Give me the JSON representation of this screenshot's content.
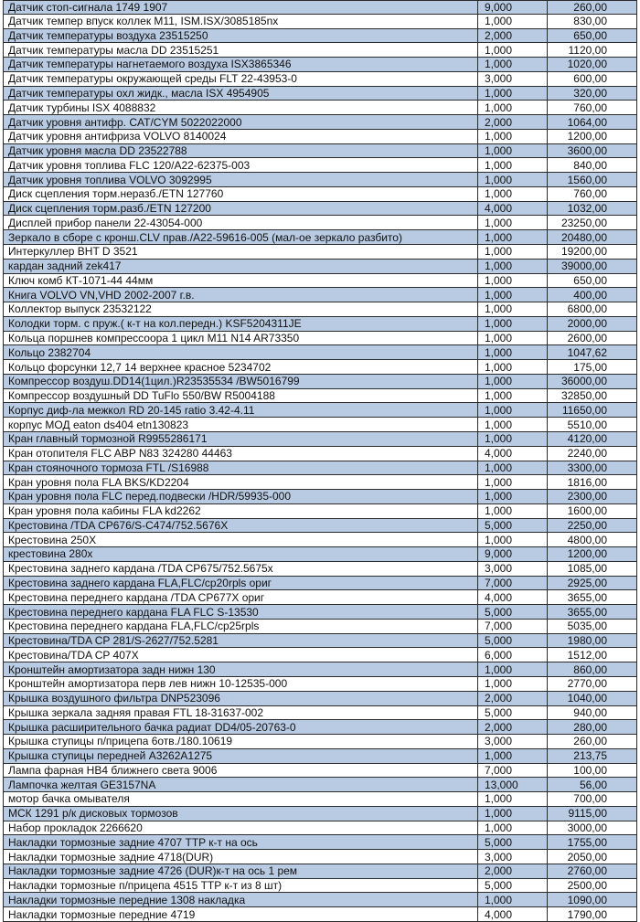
{
  "table": {
    "rows": [
      [
        "Датчик стоп-сигнала  1749  1907",
        "9,000",
        "260,00"
      ],
      [
        "Датчик темпер впуск коллек M11, ISM.ISX/3085185nx",
        "1,000",
        "830,00"
      ],
      [
        "Датчик температуры воздуха 23515250",
        "2,000",
        "650,00"
      ],
      [
        "Датчик температуры масла DD 23515251",
        "1,000",
        "1120,00"
      ],
      [
        "Датчик температуры нагнетаемого воздуха ISX3865346",
        "1,000",
        "1020,00"
      ],
      [
        "Датчик температуры окружающей среды FLT 22-43953-0",
        "3,000",
        "600,00"
      ],
      [
        "Датчик температуры охл жидк., масла ISX 4954905",
        "1,000",
        "320,00"
      ],
      [
        "Датчик турбины ISX 4088832",
        "1,000",
        "760,00"
      ],
      [
        "Датчик уровня антифр. CAT/CYM 5022022000",
        "2,000",
        "1064,00"
      ],
      [
        "Датчик уровня антифриза VOLVO 8140024",
        "1,000",
        "1200,00"
      ],
      [
        "Датчик уровня масла  DD 23522788",
        "1,000",
        "3600,00"
      ],
      [
        "Датчик уровня топлива FLC 120/A22-62375-003",
        "1,000",
        "840,00"
      ],
      [
        "Датчик уровня топлива VOLVO 3092995",
        "1,000",
        "1560,00"
      ],
      [
        "Диск сцепления торм.неразб./ETN 127760",
        "1,000",
        "760,00"
      ],
      [
        "Диск сцепления торм.разб./ETN 127200",
        "4,000",
        "1032,00"
      ],
      [
        "Дисплей прибор панели 22-43054-000",
        "1,000",
        "23250,00"
      ],
      [
        "Зеркало в сборе с кронш.CLV прав./A22-59616-005 (мал-ое зеркало разбито)",
        "1,000",
        "20480,00"
      ],
      [
        "Интеркуллер BHT D 3521",
        "1,000",
        "19200,00"
      ],
      [
        "кардан задний zek417",
        "1,000",
        "39000,00"
      ],
      [
        "Ключ комб КТ-1071-44 44мм",
        "1,000",
        "650,00"
      ],
      [
        "Книга VOLVO VN,VHD 2002-2007 г.в.",
        "1,000",
        "400,00"
      ],
      [
        "Коллектор выпуск 23532122",
        "1,000",
        "6800,00"
      ],
      [
        "Колодки торм. с пруж.( к-т на кол.передн.) KSF5204311JE",
        "1,000",
        "2000,00"
      ],
      [
        "Кольца поршнев компрессоора 1 цикл M11 N14 AR73350",
        "1,000",
        "2600,00"
      ],
      [
        "Кольцо 2382704",
        "1,000",
        "1047,62"
      ],
      [
        "Кольцо форсунки 12,7 14 верхнее красное 5234702",
        "1,000",
        "175,00"
      ],
      [
        "Компрессор воздуш.DD14(1цил.)R23535534 /BW5016799",
        "1,000",
        "36000,00"
      ],
      [
        "Компрессор воздушный DD TuFlo 550/BW R5004188",
        "1,000",
        "32850,00"
      ],
      [
        "Корпус диф-ла межкол RD 20-145 ratio 3.42-4.11",
        "1,000",
        "11650,00"
      ],
      [
        "корпус МОД eaton ds404 etn130823",
        "1,000",
        "5510,00"
      ],
      [
        "Кран главный тормозной R9955286171",
        "1,000",
        "4120,00"
      ],
      [
        "Кран отопителя FLC ABP N83 324280 44463",
        "4,000",
        "2240,00"
      ],
      [
        "Кран стояночного тормоза FTL /S16988",
        "1,000",
        "3300,00"
      ],
      [
        "Кран уровня пола FLA BKS/KD2204",
        "1,000",
        "1816,00"
      ],
      [
        "Кран уровня пола FLC перед.подвески /HDR/59935-000",
        "1,000",
        "2300,00"
      ],
      [
        "Кран уровня пола кабины FLA kd2262",
        "1,000",
        "1600,00"
      ],
      [
        "Крестовина /TDA CP676/S-C474/752.5676X",
        "5,000",
        "2250,00"
      ],
      [
        "Крестовина 250X",
        "1,000",
        "4800,00"
      ],
      [
        "крестовина 280x",
        "9,000",
        "1200,00"
      ],
      [
        "Крестовина заднего кардана /TDA CP675/752.5675x",
        "3,000",
        "1085,00"
      ],
      [
        "Крестовина заднего кардана FLA,FLC/cp20rpls ориг",
        "7,000",
        "2925,00"
      ],
      [
        "Крестовина переднего кардана /TDA CP677X ориг",
        "4,000",
        "3655,00"
      ],
      [
        "Крестовина переднего кардана FLA FLC S-13530",
        "5,000",
        "3655,00"
      ],
      [
        "Крестовина переднего кардана FLA,FLC/cp25rpls",
        "7,000",
        "5035,00"
      ],
      [
        "Крестовина/TDA CP 281/S-2627/752.5281",
        "5,000",
        "1980,00"
      ],
      [
        "Крестовина/TDA CP 407X",
        "6,000",
        "1512,00"
      ],
      [
        "Кронштейн амортизатора задн нижн 130",
        "1,000",
        "860,00"
      ],
      [
        "Кронштейн амортизатора перв лев нижн 10-12535-000",
        "1,000",
        "2770,00"
      ],
      [
        "Крышка воздушного фильтра DNP523096",
        "2,000",
        "1040,00"
      ],
      [
        "Крышка зеркала задняя правая FTL 18-31637-002",
        "5,000",
        "940,00"
      ],
      [
        "Крышка расширительного бачка радиат DD4/05-20763-0",
        "2,000",
        "280,00"
      ],
      [
        "Крышка ступицы п/прицепа 6отв./180.10619",
        "3,000",
        "260,00"
      ],
      [
        "Крышка ступицы передней A3262A1275",
        "1,000",
        "213,75"
      ],
      [
        "Лампа фарная HB4 ближнего света 9006",
        "7,000",
        "100,00"
      ],
      [
        "Лампочка желтая GE3157NA",
        "13,000",
        "56,00"
      ],
      [
        "мотор бачка омывателя",
        "1,000",
        "700,00"
      ],
      [
        "МСК 1291 р/к дисковых тормозов",
        "1,000",
        "9115,00"
      ],
      [
        "Набор прокладок 2266620",
        "1,000",
        "3000,00"
      ],
      [
        "Накладки тормозные задние 4707 TTP к-т на ось",
        "5,000",
        "1755,00"
      ],
      [
        "Накладки тормозные задние 4718(DUR)",
        "3,000",
        "2050,00"
      ],
      [
        "Накладки тормозные задние 4726 (DUR)к-т на ось 1 рем",
        "2,000",
        "2760,00"
      ],
      [
        "Накладки тормозные п/прицепа 4515 TTP к-т из 8 шт)",
        "5,000",
        "2500,00"
      ],
      [
        "Накладки тормозные передние 1308 накладка",
        "1,000",
        "1090,00"
      ],
      [
        "Накладки тормозные передние 4719",
        "4,000",
        "1790,00"
      ]
    ]
  }
}
